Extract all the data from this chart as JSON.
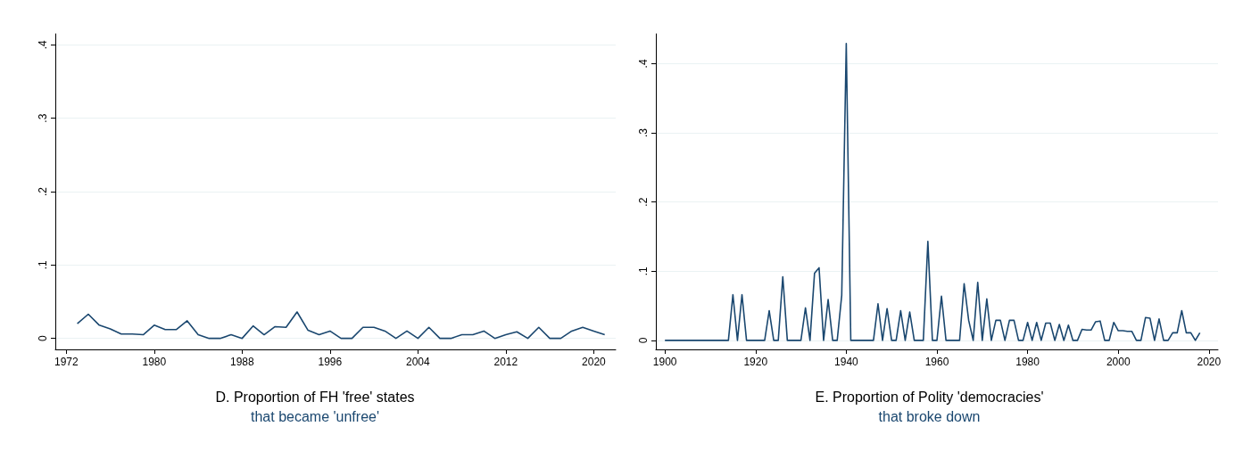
{
  "chart_data": [
    {
      "type": "line",
      "title": "D. Proportion of FH 'free' states",
      "subtitle": "that became 'unfree'",
      "color": "#1a476f",
      "grid": "y",
      "xlim": [
        1971,
        2022
      ],
      "xticks": [
        1972,
        1980,
        1988,
        1996,
        2004,
        2012,
        2020
      ],
      "ylim": [
        -0.015,
        0.415
      ],
      "yticks": [
        0,
        {
          "value": 0.1,
          "label": ".1"
        },
        {
          "value": 0.2,
          "label": ".2"
        },
        {
          "value": 0.3,
          "label": ".3"
        },
        {
          "value": 0.4,
          "label": ".4"
        }
      ],
      "x": [
        1973,
        1974,
        1975,
        1976,
        1977,
        1978,
        1979,
        1980,
        1981,
        1982,
        1983,
        1984,
        1985,
        1986,
        1987,
        1988,
        1989,
        1990,
        1991,
        1992,
        1993,
        1994,
        1995,
        1996,
        1997,
        1998,
        1999,
        2000,
        2001,
        2002,
        2003,
        2004,
        2005,
        2006,
        2007,
        2008,
        2009,
        2010,
        2011,
        2012,
        2013,
        2014,
        2015,
        2016,
        2017,
        2018,
        2019,
        2020,
        2021
      ],
      "values": [
        0.02,
        0.033,
        0.018,
        0.013,
        0.006,
        0.006,
        0.005,
        0.018,
        0.012,
        0.012,
        0.024,
        0.005,
        0,
        0,
        0.005,
        0,
        0.017,
        0.005,
        0.016,
        0.015,
        0.036,
        0.011,
        0.005,
        0.01,
        0,
        0,
        0.015,
        0.015,
        0.01,
        0,
        0.01,
        0,
        0.015,
        0,
        0,
        0.005,
        0.005,
        0.01,
        0,
        0.005,
        0.009,
        0,
        0.015,
        0,
        0,
        0.01,
        0.015,
        0.01,
        0.005
      ]
    },
    {
      "type": "line",
      "title": "E. Proportion of Polity 'democracies'",
      "subtitle": "that broke down",
      "color": "#1a476f",
      "grid": "y",
      "xlim": [
        1898,
        2022
      ],
      "xticks": [
        1900,
        1920,
        1940,
        1960,
        1980,
        2000,
        2020
      ],
      "ylim": [
        -0.013,
        0.443
      ],
      "yticks": [
        0,
        {
          "value": 0.1,
          "label": ".1"
        },
        {
          "value": 0.2,
          "label": ".2"
        },
        {
          "value": 0.3,
          "label": ".3"
        },
        {
          "value": 0.4,
          "label": ".4"
        }
      ],
      "x": [
        1900,
        1914,
        1915,
        1916,
        1917,
        1918,
        1922,
        1923,
        1924,
        1925,
        1926,
        1927,
        1930,
        1931,
        1932,
        1933,
        1934,
        1935,
        1936,
        1937,
        1938,
        1939,
        1940,
        1941,
        1946,
        1947,
        1948,
        1949,
        1950,
        1951,
        1952,
        1953,
        1954,
        1955,
        1956,
        1957,
        1958,
        1959,
        1960,
        1961,
        1962,
        1963,
        1964,
        1965,
        1966,
        1967,
        1968,
        1969,
        1970,
        1971,
        1972,
        1973,
        1974,
        1975,
        1976,
        1977,
        1978,
        1979,
        1980,
        1981,
        1982,
        1983,
        1984,
        1985,
        1986,
        1987,
        1988,
        1989,
        1990,
        1991,
        1992,
        1993,
        1994,
        1995,
        1996,
        1997,
        1998,
        1999,
        2000,
        2001,
        2002,
        2003,
        2004,
        2005,
        2006,
        2007,
        2008,
        2009,
        2010,
        2011,
        2012,
        2013,
        2014,
        2015,
        2016,
        2017,
        2018
      ],
      "values": [
        0,
        0,
        0.066,
        0,
        0.066,
        0,
        0,
        0.043,
        0,
        0,
        0.092,
        0,
        0,
        0.047,
        0,
        0.097,
        0.105,
        0,
        0.059,
        0,
        0,
        0.065,
        0.429,
        0,
        0,
        0.053,
        0,
        0.046,
        0,
        0,
        0.043,
        0,
        0.041,
        0,
        0,
        0,
        0.143,
        0,
        0,
        0.064,
        0,
        0,
        0,
        0,
        0.082,
        0.029,
        0,
        0.084,
        0,
        0.06,
        0,
        0.029,
        0.029,
        0,
        0.029,
        0.029,
        0,
        0,
        0.026,
        0,
        0.026,
        0,
        0.025,
        0.025,
        0,
        0.023,
        0,
        0.022,
        0,
        0,
        0.016,
        0.015,
        0.015,
        0.027,
        0.028,
        0,
        0,
        0.026,
        0.014,
        0.014,
        0.013,
        0.013,
        0,
        0,
        0.033,
        0.032,
        0,
        0.031,
        0,
        0,
        0.011,
        0.011,
        0.043,
        0.011,
        0.011,
        0,
        0.011
      ]
    }
  ]
}
